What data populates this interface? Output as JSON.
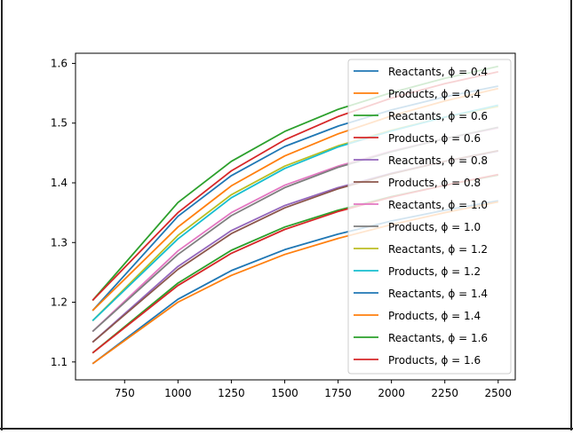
{
  "chart_data": {
    "type": "line",
    "title": "",
    "xlabel": "",
    "ylabel": "",
    "xlim": [
      520,
      2580
    ],
    "ylim": [
      1.07,
      1.617
    ],
    "x_ticks": [
      750,
      1000,
      1250,
      1500,
      1750,
      2000,
      2250,
      2500
    ],
    "x_tick_labels": [
      "750",
      "1000",
      "1250",
      "1500",
      "1750",
      "2000",
      "2250",
      "2500"
    ],
    "y_ticks": [
      1.1,
      1.2,
      1.3,
      1.4,
      1.5,
      1.6
    ],
    "y_tick_labels": [
      "1.1",
      "1.2",
      "1.3",
      "1.4",
      "1.5",
      "1.6"
    ],
    "grid": false,
    "legend_position": "upper-right",
    "x": [
      600,
      1000,
      1250,
      1500,
      1750,
      2000,
      2250,
      2500
    ],
    "series": [
      {
        "name": "Reactants, ϕ = 0.4",
        "color": "#1f77b4",
        "values": [
          1.097,
          1.205,
          1.253,
          1.288,
          1.314,
          1.336,
          1.354,
          1.37
        ]
      },
      {
        "name": "Products, ϕ = 0.4",
        "color": "#ff7f0e",
        "values": [
          1.097,
          1.2,
          1.245,
          1.28,
          1.307,
          1.33,
          1.35,
          1.368
        ]
      },
      {
        "name": "Reactants, ϕ = 0.6",
        "color": "#2ca02c",
        "values": [
          1.115,
          1.232,
          1.287,
          1.326,
          1.354,
          1.377,
          1.396,
          1.413
        ]
      },
      {
        "name": "Products, ϕ = 0.6",
        "color": "#d62728",
        "values": [
          1.115,
          1.228,
          1.282,
          1.322,
          1.352,
          1.376,
          1.396,
          1.414
        ]
      },
      {
        "name": "Reactants, ϕ = 0.8",
        "color": "#9467bd",
        "values": [
          1.133,
          1.26,
          1.32,
          1.362,
          1.392,
          1.416,
          1.436,
          1.453
        ]
      },
      {
        "name": "Products, ϕ = 0.8",
        "color": "#8c564b",
        "values": [
          1.133,
          1.255,
          1.315,
          1.358,
          1.39,
          1.415,
          1.436,
          1.454
        ]
      },
      {
        "name": "Reactants, ϕ = 1.0",
        "color": "#e377c2",
        "values": [
          1.151,
          1.286,
          1.35,
          1.396,
          1.428,
          1.453,
          1.474,
          1.492
        ]
      },
      {
        "name": "Products, ϕ = 1.0",
        "color": "#7f7f7f",
        "values": [
          1.151,
          1.28,
          1.345,
          1.392,
          1.426,
          1.452,
          1.474,
          1.493
        ]
      },
      {
        "name": "Reactants, ϕ = 1.2",
        "color": "#bcbd22",
        "values": [
          1.169,
          1.312,
          1.38,
          1.428,
          1.462,
          1.488,
          1.51,
          1.528
        ]
      },
      {
        "name": "Products, ϕ = 1.2",
        "color": "#17becf",
        "values": [
          1.169,
          1.306,
          1.375,
          1.424,
          1.46,
          1.487,
          1.51,
          1.53
        ]
      },
      {
        "name": "Reactants, ϕ = 1.4",
        "color": "#1f77b4",
        "values": [
          1.186,
          1.344,
          1.412,
          1.461,
          1.495,
          1.522,
          1.544,
          1.562
        ]
      },
      {
        "name": "Products, ϕ = 1.4",
        "color": "#ff7f0e",
        "values": [
          1.186,
          1.326,
          1.395,
          1.445,
          1.482,
          1.512,
          1.537,
          1.558
        ]
      },
      {
        "name": "Reactants, ϕ = 1.6",
        "color": "#2ca02c",
        "values": [
          1.203,
          1.367,
          1.436,
          1.486,
          1.523,
          1.551,
          1.575,
          1.595
        ]
      },
      {
        "name": "Products, ϕ = 1.6",
        "color": "#d62728",
        "values": [
          1.203,
          1.35,
          1.42,
          1.472,
          1.511,
          1.542,
          1.566,
          1.586
        ]
      }
    ]
  }
}
